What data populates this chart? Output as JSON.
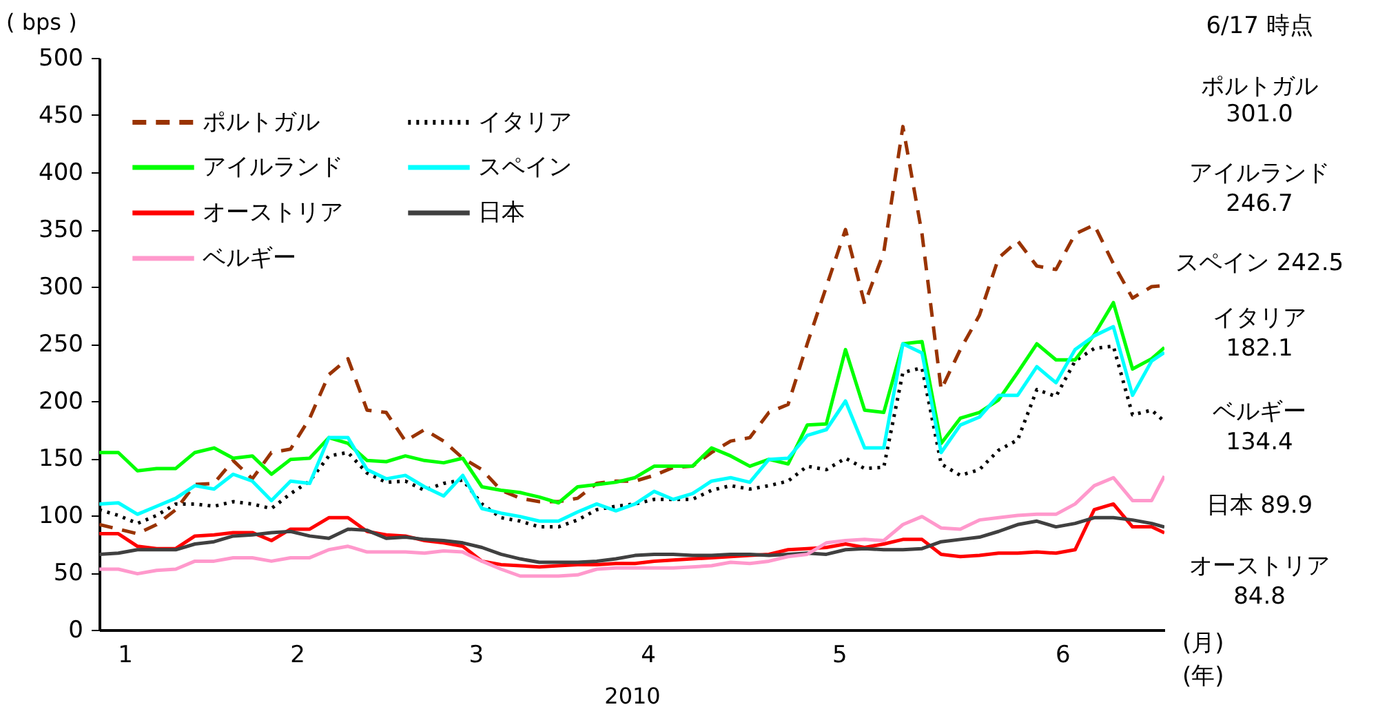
{
  "chart_data": {
    "type": "line",
    "ylabel": "( bps )",
    "xlabel": "2010",
    "x": [
      "2010-01-01",
      "2010-01-04",
      "2010-01-07",
      "2010-01-10",
      "2010-01-13",
      "2010-01-16",
      "2010-01-19",
      "2010-01-22",
      "2010-01-25",
      "2010-01-28",
      "2010-01-31",
      "2010-02-03",
      "2010-02-06",
      "2010-02-09",
      "2010-02-12",
      "2010-02-15",
      "2010-02-18",
      "2010-02-21",
      "2010-02-24",
      "2010-02-27",
      "2010-03-02",
      "2010-03-05",
      "2010-03-08",
      "2010-03-11",
      "2010-03-14",
      "2010-03-17",
      "2010-03-20",
      "2010-03-23",
      "2010-03-26",
      "2010-03-29",
      "2010-04-01",
      "2010-04-04",
      "2010-04-07",
      "2010-04-10",
      "2010-04-13",
      "2010-04-16",
      "2010-04-19",
      "2010-04-22",
      "2010-04-25",
      "2010-04-28",
      "2010-05-01",
      "2010-05-04",
      "2010-05-07",
      "2010-05-10",
      "2010-05-13",
      "2010-05-16",
      "2010-05-19",
      "2010-05-22",
      "2010-05-25",
      "2010-05-28",
      "2010-05-31",
      "2010-06-03",
      "2010-06-06",
      "2010-06-09",
      "2010-06-12",
      "2010-06-15",
      "2010-06-17"
    ],
    "xlim": [
      "2010-01-01",
      "2010-06-17"
    ],
    "xticks": [
      {
        "value": "2010-01-05",
        "label": "1"
      },
      {
        "value": "2010-02-01",
        "label": "2"
      },
      {
        "value": "2010-03-01",
        "label": "3"
      },
      {
        "value": "2010-03-28",
        "label": "4"
      },
      {
        "value": "2010-04-27",
        "label": "5"
      },
      {
        "value": "2010-06-01",
        "label": "6"
      }
    ],
    "ylim": [
      0,
      500
    ],
    "yticks": [
      0,
      50,
      100,
      150,
      200,
      250,
      300,
      350,
      400,
      450,
      500
    ],
    "legend": "top left",
    "series": [
      {
        "name": "ポルトガル",
        "color": "#993300",
        "line_style": "dashed",
        "values": [
          92,
          88,
          84,
          92,
          105,
          127,
          128,
          148,
          132,
          155,
          158,
          185,
          223,
          237,
          192,
          190,
          165,
          175,
          165,
          150,
          140,
          122,
          115,
          112,
          112,
          115,
          128,
          130,
          130,
          135,
          142,
          143,
          155,
          165,
          168,
          190,
          197,
          250,
          300,
          350,
          285,
          330,
          440,
          346,
          210,
          245,
          275,
          325,
          340,
          318,
          315,
          346,
          354,
          320,
          290,
          300,
          301
        ]
      },
      {
        "name": "イタリア",
        "color": "#000000",
        "line_style": "dotted",
        "values": [
          105,
          100,
          93,
          100,
          110,
          110,
          108,
          112,
          110,
          106,
          119,
          130,
          152,
          155,
          137,
          129,
          130,
          122,
          128,
          131,
          110,
          98,
          95,
          90,
          90,
          96,
          105,
          108,
          110,
          114,
          114,
          114,
          122,
          126,
          123,
          126,
          130,
          143,
          140,
          150,
          141,
          142,
          225,
          229,
          145,
          135,
          140,
          157,
          166,
          210,
          204,
          235,
          246,
          248,
          188,
          192,
          182.1
        ]
      },
      {
        "name": "アイルランド",
        "color": "#00ff00",
        "line_style": "solid",
        "values": [
          155,
          155,
          139,
          141,
          141,
          155,
          159,
          150,
          152,
          136,
          149,
          150,
          168,
          163,
          148,
          147,
          152,
          148,
          146,
          150,
          125,
          122,
          120,
          116,
          111,
          125,
          127,
          129,
          133,
          143,
          143,
          143,
          159,
          152,
          143,
          149,
          145,
          179,
          180,
          245,
          192,
          190,
          250,
          252,
          163,
          185,
          190,
          201,
          225,
          250,
          236,
          236,
          258,
          286,
          228,
          237,
          246.7
        ]
      },
      {
        "name": "スペイン",
        "color": "#00ffff",
        "line_style": "solid",
        "values": [
          110,
          111,
          101,
          108,
          115,
          126,
          123,
          136,
          130,
          113,
          130,
          128,
          168,
          168,
          140,
          132,
          135,
          125,
          117,
          135,
          106,
          102,
          99,
          95,
          95,
          103,
          110,
          104,
          110,
          121,
          114,
          119,
          130,
          133,
          129,
          149,
          150,
          170,
          175,
          200,
          159,
          159,
          250,
          242,
          155,
          179,
          186,
          205,
          205,
          230,
          216,
          245,
          257,
          265,
          205,
          235,
          242.5
        ]
      },
      {
        "name": "オーストリア",
        "color": "#ff0000",
        "line_style": "solid",
        "values": [
          84,
          84,
          73,
          71,
          71,
          82,
          83,
          85,
          85,
          78,
          88,
          88,
          98,
          98,
          86,
          83,
          82,
          78,
          76,
          73,
          60,
          57,
          56,
          55,
          56,
          57,
          57,
          58,
          58,
          60,
          61,
          62,
          63,
          64,
          65,
          66,
          70,
          71,
          72,
          75,
          72,
          75,
          79,
          79,
          66,
          64,
          65,
          67,
          67,
          68,
          67,
          70,
          105,
          110,
          90,
          90,
          84.8
        ]
      },
      {
        "name": "日本",
        "color": "#404040",
        "line_style": "solid",
        "values": [
          66,
          67,
          70,
          70,
          70,
          75,
          77,
          82,
          83,
          85,
          86,
          82,
          80,
          88,
          87,
          80,
          81,
          79,
          78,
          76,
          72,
          66,
          62,
          59,
          59,
          59,
          60,
          62,
          65,
          66,
          66,
          65,
          65,
          66,
          66,
          65,
          66,
          67,
          66,
          70,
          71,
          70,
          70,
          71,
          77,
          79,
          81,
          86,
          92,
          95,
          90,
          93,
          98,
          98,
          96,
          93,
          89.9
        ]
      },
      {
        "name": "ベルギー",
        "color": "#ff99cc",
        "line_style": "solid",
        "values": [
          53,
          53,
          49,
          52,
          53,
          60,
          60,
          63,
          63,
          60,
          63,
          63,
          70,
          73,
          68,
          68,
          68,
          67,
          69,
          68,
          60,
          53,
          47,
          47,
          47,
          48,
          53,
          54,
          54,
          54,
          54,
          55,
          56,
          59,
          58,
          60,
          64,
          66,
          76,
          78,
          79,
          78,
          92,
          99,
          89,
          88,
          96,
          98,
          100,
          101,
          101,
          110,
          126,
          133,
          113,
          113,
          134.4
        ]
      }
    ],
    "annotations": [
      "6/17 時点",
      "ポルトガル",
      "301.0",
      "アイルランド",
      "246.7",
      "スペイン 242.5",
      "イタリア",
      "182.1",
      "ベルギー",
      "134.4",
      "日本 89.9",
      "オーストリア",
      "84.8",
      "(月)",
      "(年)"
    ]
  }
}
